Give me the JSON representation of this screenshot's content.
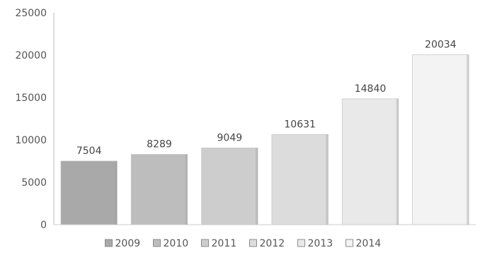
{
  "chart_data": {
    "type": "bar",
    "categories": [
      "2009",
      "2010",
      "2011",
      "2012",
      "2013",
      "2014"
    ],
    "values": [
      7504,
      8289,
      9049,
      10631,
      14840,
      20034
    ],
    "data_labels": [
      "7504",
      "8289",
      "9049",
      "10631",
      "14840",
      "20034"
    ],
    "ylim": [
      0,
      25000
    ],
    "yticks": [
      0,
      5000,
      10000,
      15000,
      20000,
      25000
    ],
    "ytick_labels": [
      "0",
      "5000",
      "10000",
      "15000",
      "20000",
      "25000"
    ],
    "grid": false,
    "legend_position": "bottom",
    "legend": [
      "2009",
      "2010",
      "2011",
      "2012",
      "2013",
      "2014"
    ],
    "bar_colors": [
      "#a9a9a9",
      "#bdbdbd",
      "#cdcdcd",
      "#dcdcdc",
      "#e9e9e9",
      "#f3f3f3"
    ]
  }
}
